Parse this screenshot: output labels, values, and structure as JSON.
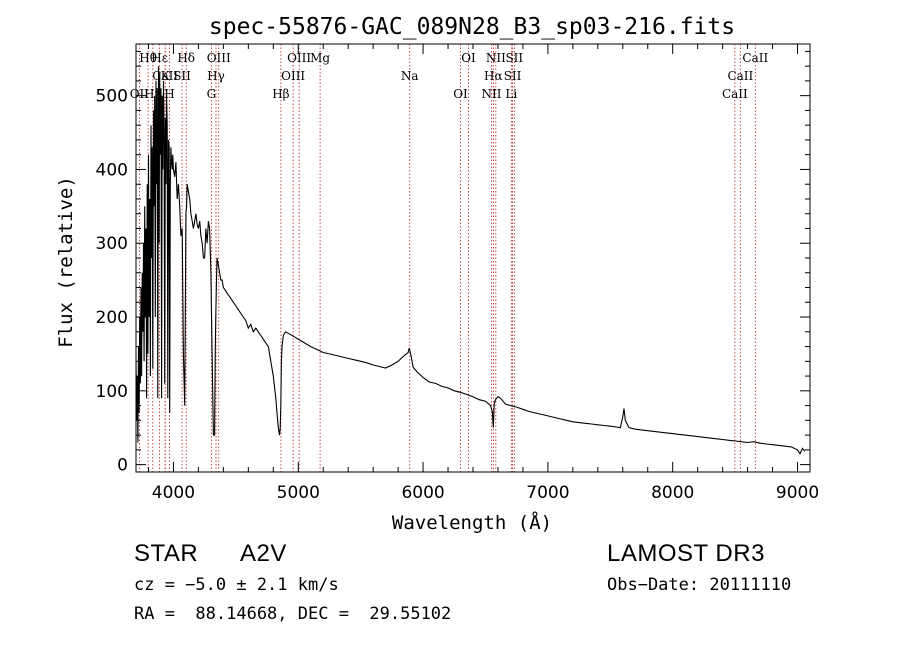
{
  "chart_data": {
    "type": "line",
    "title": "spec-55876-GAC_089N28_B3_sp03-216.fits",
    "xlabel": "Wavelength (Å)",
    "ylabel": "Flux (relative)",
    "xlim": [
      3700,
      9100
    ],
    "ylim": [
      -10,
      570
    ],
    "x_ticks": [
      4000,
      5000,
      6000,
      7000,
      8000,
      9000
    ],
    "y_ticks": [
      0,
      100,
      200,
      300,
      400,
      500
    ],
    "x_tick_labels": [
      "4000",
      "5000",
      "6000",
      "7000",
      "8000",
      "9000"
    ],
    "y_tick_labels": [
      "0",
      "100",
      "200",
      "300",
      "400",
      "500"
    ],
    "series": [
      {
        "name": "spectrum",
        "x": [
          3700,
          3705,
          3710,
          3715,
          3720,
          3725,
          3730,
          3735,
          3740,
          3745,
          3750,
          3755,
          3760,
          3765,
          3770,
          3775,
          3780,
          3785,
          3790,
          3795,
          3800,
          3805,
          3810,
          3815,
          3820,
          3825,
          3830,
          3835,
          3840,
          3845,
          3850,
          3855,
          3860,
          3865,
          3870,
          3875,
          3880,
          3885,
          3890,
          3895,
          3900,
          3905,
          3910,
          3915,
          3920,
          3925,
          3930,
          3935,
          3940,
          3945,
          3950,
          3955,
          3960,
          3965,
          3970,
          3975,
          3980,
          3985,
          3990,
          3995,
          4000,
          4010,
          4020,
          4030,
          4040,
          4050,
          4060,
          4070,
          4080,
          4090,
          4095,
          4100,
          4105,
          4110,
          4120,
          4130,
          4140,
          4150,
          4160,
          4170,
          4180,
          4190,
          4200,
          4210,
          4220,
          4230,
          4240,
          4250,
          4260,
          4270,
          4280,
          4290,
          4300,
          4310,
          4320,
          4330,
          4335,
          4340,
          4345,
          4350,
          4360,
          4370,
          4380,
          4390,
          4400,
          4420,
          4440,
          4460,
          4480,
          4500,
          4520,
          4540,
          4560,
          4580,
          4600,
          4620,
          4640,
          4660,
          4680,
          4700,
          4720,
          4740,
          4760,
          4780,
          4800,
          4820,
          4830,
          4840,
          4850,
          4855,
          4860,
          4865,
          4870,
          4880,
          4890,
          4900,
          4920,
          4940,
          4960,
          4980,
          5000,
          5020,
          5040,
          5060,
          5080,
          5100,
          5150,
          5200,
          5250,
          5300,
          5350,
          5400,
          5450,
          5500,
          5550,
          5600,
          5650,
          5700,
          5750,
          5800,
          5850,
          5880,
          5890,
          5900,
          5910,
          5920,
          5950,
          6000,
          6050,
          6100,
          6150,
          6200,
          6250,
          6300,
          6350,
          6400,
          6450,
          6500,
          6540,
          6555,
          6563,
          6570,
          6580,
          6600,
          6620,
          6640,
          6660,
          6700,
          6750,
          6800,
          6850,
          6900,
          6950,
          7000,
          7050,
          7100,
          7150,
          7200,
          7250,
          7300,
          7350,
          7400,
          7450,
          7500,
          7550,
          7580,
          7600,
          7610,
          7620,
          7650,
          7700,
          7750,
          7800,
          7850,
          7900,
          7950,
          8000,
          8050,
          8100,
          8150,
          8200,
          8250,
          8300,
          8350,
          8400,
          8450,
          8500,
          8550,
          8600,
          8650,
          8700,
          8750,
          8800,
          8850,
          8900,
          8950,
          9000,
          9020,
          9040,
          9060
        ],
        "y": [
          140,
          60,
          120,
          30,
          160,
          70,
          200,
          110,
          240,
          120,
          260,
          180,
          300,
          140,
          350,
          200,
          320,
          90,
          380,
          150,
          420,
          200,
          360,
          120,
          460,
          280,
          430,
          130,
          480,
          350,
          500,
          200,
          520,
          380,
          510,
          90,
          540,
          300,
          530,
          420,
          510,
          90,
          500,
          400,
          520,
          450,
          110,
          470,
          380,
          500,
          460,
          90,
          440,
          430,
          70,
          380,
          430,
          410,
          400,
          420,
          400,
          390,
          410,
          360,
          380,
          350,
          310,
          320,
          150,
          80,
          200,
          340,
          350,
          380,
          370,
          360,
          340,
          330,
          320,
          330,
          340,
          325,
          320,
          330,
          310,
          300,
          280,
          280,
          320,
          300,
          330,
          320,
          260,
          150,
          40,
          40,
          160,
          210,
          250,
          280,
          270,
          260,
          250,
          250,
          240,
          235,
          230,
          225,
          220,
          215,
          210,
          205,
          200,
          195,
          185,
          190,
          180,
          185,
          180,
          175,
          170,
          165,
          160,
          140,
          120,
          90,
          70,
          50,
          40,
          50,
          80,
          140,
          160,
          175,
          178,
          180,
          178,
          176,
          174,
          172,
          170,
          168,
          166,
          164,
          162,
          160,
          156,
          152,
          150,
          148,
          146,
          144,
          142,
          140,
          138,
          135,
          133,
          131,
          135,
          140,
          148,
          152,
          158,
          150,
          142,
          132,
          126,
          118,
          112,
          110,
          106,
          104,
          100,
          98,
          95,
          92,
          88,
          86,
          80,
          72,
          50,
          82,
          88,
          92,
          90,
          86,
          82,
          80,
          78,
          75,
          72,
          70,
          68,
          66,
          64,
          62,
          60,
          58,
          57,
          56,
          55,
          54,
          53,
          52,
          51,
          50,
          65,
          76,
          60,
          50,
          48,
          47,
          46,
          45,
          44,
          43,
          42,
          41,
          40,
          39,
          38,
          37,
          36,
          35,
          34,
          33,
          32,
          31,
          30,
          31,
          29,
          28,
          27,
          26,
          25,
          24,
          20,
          15,
          22,
          18
        ]
      }
    ],
    "lines": [
      {
        "label": "Hθ",
        "x": 3797
      },
      {
        "label": "CaII",
        "x": 3934
      },
      {
        "label": "OII",
        "x": 3727
      },
      {
        "label": "Hε",
        "x": 3889
      },
      {
        "label": "K",
        "x": 3934
      },
      {
        "label": "H",
        "x": 3968
      },
      {
        "label": "Hδ",
        "x": 4102
      },
      {
        "label": "SII",
        "x": 4069
      },
      {
        "label": "Hη",
        "x": 3835
      },
      {
        "label": "OIII",
        "x": 4363
      },
      {
        "label": "Hγ",
        "x": 4341
      },
      {
        "label": "G",
        "x": 4304
      },
      {
        "label": "OIII",
        "x": 5007
      },
      {
        "label": "OIII",
        "x": 4959
      },
      {
        "label": "Hβ",
        "x": 4861
      },
      {
        "label": "Mg",
        "x": 5175
      },
      {
        "label": "Na",
        "x": 5893
      },
      {
        "label": "OI",
        "x": 6300
      },
      {
        "label": "OI",
        "x": 6364
      },
      {
        "label": "Hα",
        "x": 6563
      },
      {
        "label": "NII",
        "x": 6548
      },
      {
        "label": "NII",
        "x": 6583
      },
      {
        "label": "SII",
        "x": 6717
      },
      {
        "label": "Li",
        "x": 6707
      },
      {
        "label": "SII",
        "x": 6731
      },
      {
        "label": "CaII",
        "x": 8542
      },
      {
        "label": "CaII",
        "x": 8498
      },
      {
        "label": "CaII",
        "x": 8662
      }
    ]
  },
  "info": {
    "class": "STAR",
    "subclass": "A2V",
    "survey": "LAMOST DR3",
    "cz": "cz = −5.0 ± 2.1 km/s",
    "obs_date": "Obs−Date: 20111110",
    "radec": "RA =  88.14668, DEC =  29.55102"
  }
}
